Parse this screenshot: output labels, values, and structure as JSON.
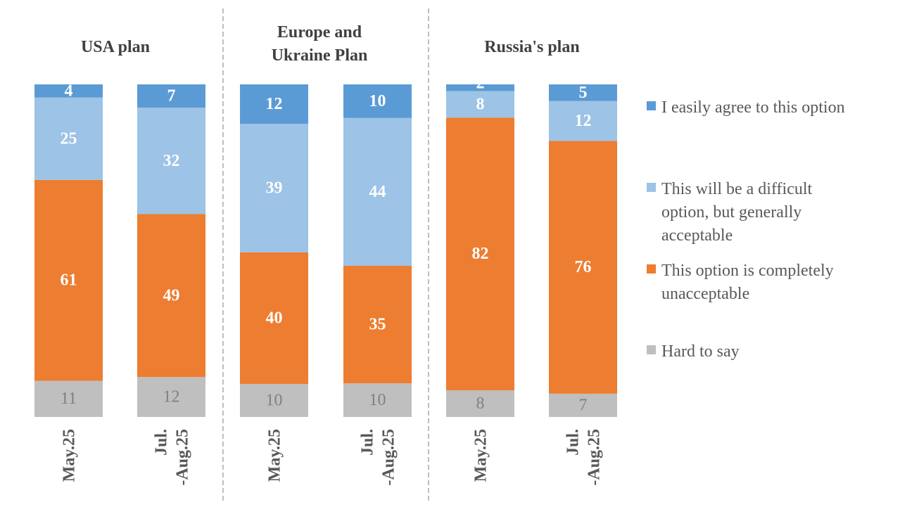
{
  "chart_data": {
    "type": "bar",
    "stacked": true,
    "percent": true,
    "groups": [
      {
        "title": [
          "USA plan"
        ],
        "categories": [
          [
            "May.25"
          ],
          [
            "Jul.",
            "-Aug.25"
          ]
        ]
      },
      {
        "title": [
          "Europe and",
          "Ukraine Plan"
        ],
        "categories": [
          [
            "May.25"
          ],
          [
            "Jul.",
            "-Aug.25"
          ]
        ]
      },
      {
        "title": [
          "Russia's plan"
        ],
        "categories": [
          [
            "May.25"
          ],
          [
            "Jul.",
            "-Aug.25"
          ]
        ]
      }
    ],
    "series": [
      {
        "name": "Hard to say",
        "color": "#bfbfbf",
        "label_color": "#808080",
        "values": [
          11,
          12,
          10,
          10,
          8,
          7
        ]
      },
      {
        "name": "This option is completely unacceptable",
        "color": "#ed7d31",
        "label_color": "#ffffff",
        "values": [
          61,
          49,
          40,
          35,
          82,
          76
        ]
      },
      {
        "name": "This will be a difficult option, but generally acceptable",
        "color": "#9dc3e6",
        "label_color": "#ffffff",
        "values": [
          25,
          32,
          39,
          44,
          8,
          12
        ]
      },
      {
        "name": "I easily agree to this option",
        "color": "#5b9bd5",
        "label_color": "#ffffff",
        "values": [
          4,
          7,
          12,
          10,
          2,
          5
        ]
      }
    ],
    "legend": {
      "placement": "right",
      "items": [
        {
          "lines": [
            "I easily agree to this option"
          ],
          "color": "#5b9bd5"
        },
        {
          "lines": [
            "This will be a difficult",
            "option, but generally",
            "acceptable"
          ],
          "color": "#9dc3e6"
        },
        {
          "lines": [
            "This option is completely",
            "unacceptable"
          ],
          "color": "#ed7d31"
        },
        {
          "lines": [
            "Hard to say"
          ],
          "color": "#bfbfbf"
        }
      ]
    },
    "ylim": [
      0,
      100
    ],
    "grid": false,
    "group_separators": "dashed"
  }
}
